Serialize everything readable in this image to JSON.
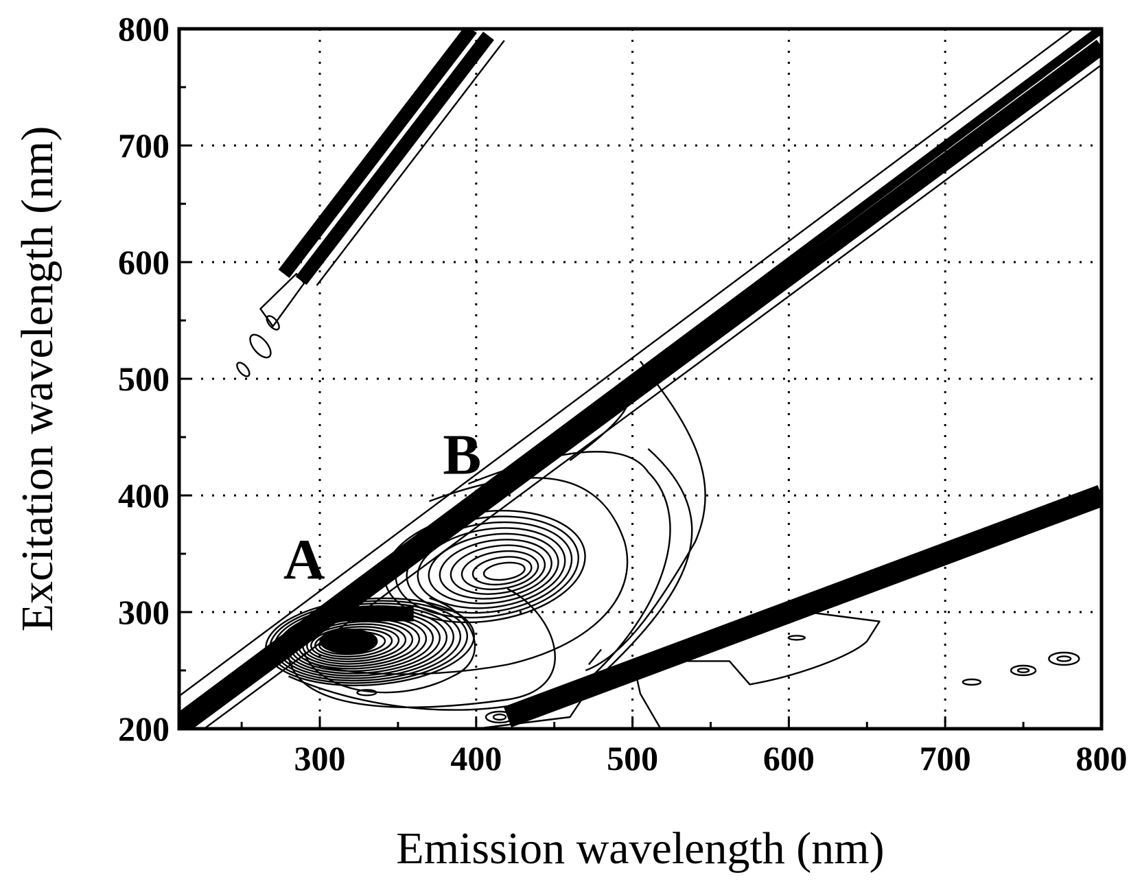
{
  "chart_data": {
    "type": "contour",
    "title": "",
    "xlabel": "Emission wavelength (nm)",
    "ylabel": "Excitation wavelength (nm)",
    "xlim": [
      210,
      800
    ],
    "ylim": [
      200,
      800
    ],
    "x_ticks": [
      300,
      400,
      500,
      600,
      700,
      800
    ],
    "y_ticks": [
      200,
      300,
      400,
      500,
      600,
      700,
      800
    ],
    "grid": "dotted",
    "annotations": [
      {
        "text": "A",
        "x": 290,
        "y": 345
      },
      {
        "text": "B",
        "x": 391,
        "y": 435
      }
    ],
    "scatter_bands": [
      {
        "name": "Rayleigh scattering (first order)",
        "points": [
          [
            210,
            210
          ],
          [
            800,
            800
          ]
        ]
      },
      {
        "name": "Raman scattering",
        "points": [
          [
            210,
            200
          ],
          [
            800,
            785
          ]
        ]
      },
      {
        "name": "Second-order scattering",
        "points": [
          [
            280,
            590
          ],
          [
            400,
            800
          ]
        ]
      },
      {
        "name": "Half-order scattering",
        "points": [
          [
            420,
            210
          ],
          [
            800,
            400
          ]
        ]
      }
    ],
    "peaks": [
      {
        "name": "Peak 1",
        "em": 418,
        "ex": 335
      },
      {
        "name": "Peak 2",
        "em": 325,
        "ex": 275
      },
      {
        "name": "Peak 3",
        "em": 605,
        "ex": 278
      },
      {
        "name": "Peak 4",
        "em": 776,
        "ex": 260
      },
      {
        "name": "Peak 5",
        "em": 750,
        "ex": 250
      },
      {
        "name": "Peak 6",
        "em": 717,
        "ex": 240
      }
    ]
  }
}
